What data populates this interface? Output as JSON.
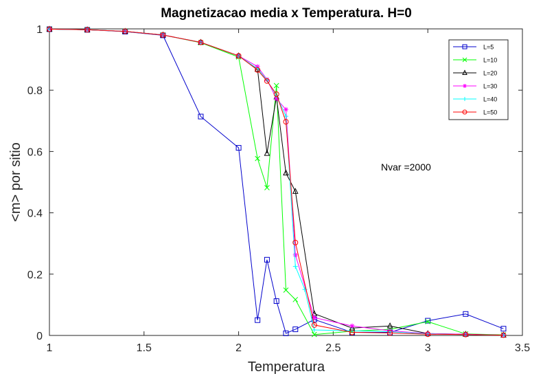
{
  "chart_data": {
    "type": "line",
    "title": "Magnetizacao media x Temperatura. H=0",
    "xlabel": "Temperatura",
    "ylabel": "<m> por sitio",
    "xlim": [
      1,
      3.5
    ],
    "ylim": [
      0,
      1
    ],
    "xticks": [
      "1",
      "1.5",
      "2",
      "2.5",
      "3",
      "3.5"
    ],
    "yticks": [
      "0",
      "0.2",
      "0.4",
      "0.6",
      "0.8",
      "1"
    ],
    "grid": false,
    "legend_position": "top-right",
    "annotation": "Nvar =2000",
    "series": [
      {
        "name": "L=5",
        "color": "#0000cc",
        "marker": "square",
        "x": [
          1,
          1.2,
          1.4,
          1.6,
          1.8,
          2.0,
          2.1,
          2.15,
          2.2,
          2.25,
          2.3,
          2.4,
          2.6,
          2.8,
          3.0,
          3.2,
          3.4
        ],
        "y": [
          0.999,
          0.997,
          0.991,
          0.979,
          0.714,
          0.612,
          0.05,
          0.247,
          0.112,
          0.007,
          0.02,
          0.052,
          0.01,
          0.01,
          0.048,
          0.07,
          0.022
        ]
      },
      {
        "name": "L=10",
        "color": "#00ff00",
        "marker": "x",
        "x": [
          1,
          1.2,
          1.4,
          1.6,
          1.8,
          2.0,
          2.1,
          2.15,
          2.2,
          2.25,
          2.3,
          2.4,
          2.6,
          2.8,
          3.0,
          3.2,
          3.4
        ],
        "y": [
          0.999,
          0.997,
          0.992,
          0.98,
          0.955,
          0.908,
          0.577,
          0.482,
          0.815,
          0.148,
          0.117,
          0.003,
          0.014,
          0.02,
          0.045,
          0.005,
          0.002
        ]
      },
      {
        "name": "L=20",
        "color": "#000000",
        "marker": "triangle",
        "x": [
          1,
          1.2,
          1.4,
          1.6,
          1.8,
          2.0,
          2.1,
          2.15,
          2.2,
          2.25,
          2.3,
          2.4,
          2.6,
          2.8,
          3.0,
          3.2,
          3.4
        ],
        "y": [
          0.999,
          0.997,
          0.992,
          0.98,
          0.956,
          0.912,
          0.868,
          0.594,
          0.778,
          0.53,
          0.47,
          0.071,
          0.024,
          0.031,
          0.006,
          0.004,
          0.001
        ]
      },
      {
        "name": "L=30",
        "color": "#ff00ff",
        "marker": "star",
        "x": [
          1,
          1.2,
          1.4,
          1.6,
          1.8,
          2.0,
          2.1,
          2.15,
          2.2,
          2.25,
          2.3,
          2.4,
          2.6,
          2.8,
          3.0,
          3.2,
          3.4
        ],
        "y": [
          0.999,
          0.997,
          0.992,
          0.98,
          0.956,
          0.912,
          0.877,
          0.835,
          0.772,
          0.737,
          0.263,
          0.058,
          0.031,
          0.015,
          0.006,
          0.004,
          0.001
        ]
      },
      {
        "name": "L=40",
        "color": "#00ffff",
        "marker": "plus",
        "x": [
          1,
          1.2,
          1.4,
          1.6,
          1.8,
          2.0,
          2.1,
          2.15,
          2.2,
          2.25,
          2.3,
          2.35,
          2.4,
          2.6,
          2.8,
          3.0,
          3.2,
          3.4
        ],
        "y": [
          0.999,
          0.997,
          0.992,
          0.98,
          0.956,
          0.912,
          0.87,
          0.833,
          0.783,
          0.715,
          0.225,
          0.15,
          0.018,
          0.015,
          0.012,
          0.005,
          0.003,
          0.001
        ]
      },
      {
        "name": "L=50",
        "color": "#ff0000",
        "marker": "circle",
        "x": [
          1,
          1.2,
          1.4,
          1.6,
          1.8,
          2.0,
          2.1,
          2.15,
          2.2,
          2.25,
          2.3,
          2.4,
          2.6,
          2.8,
          3.0,
          3.2,
          3.4
        ],
        "y": [
          0.999,
          0.997,
          0.992,
          0.98,
          0.956,
          0.912,
          0.866,
          0.83,
          0.787,
          0.697,
          0.303,
          0.034,
          0.01,
          0.008,
          0.004,
          0.003,
          0.001
        ]
      }
    ]
  }
}
